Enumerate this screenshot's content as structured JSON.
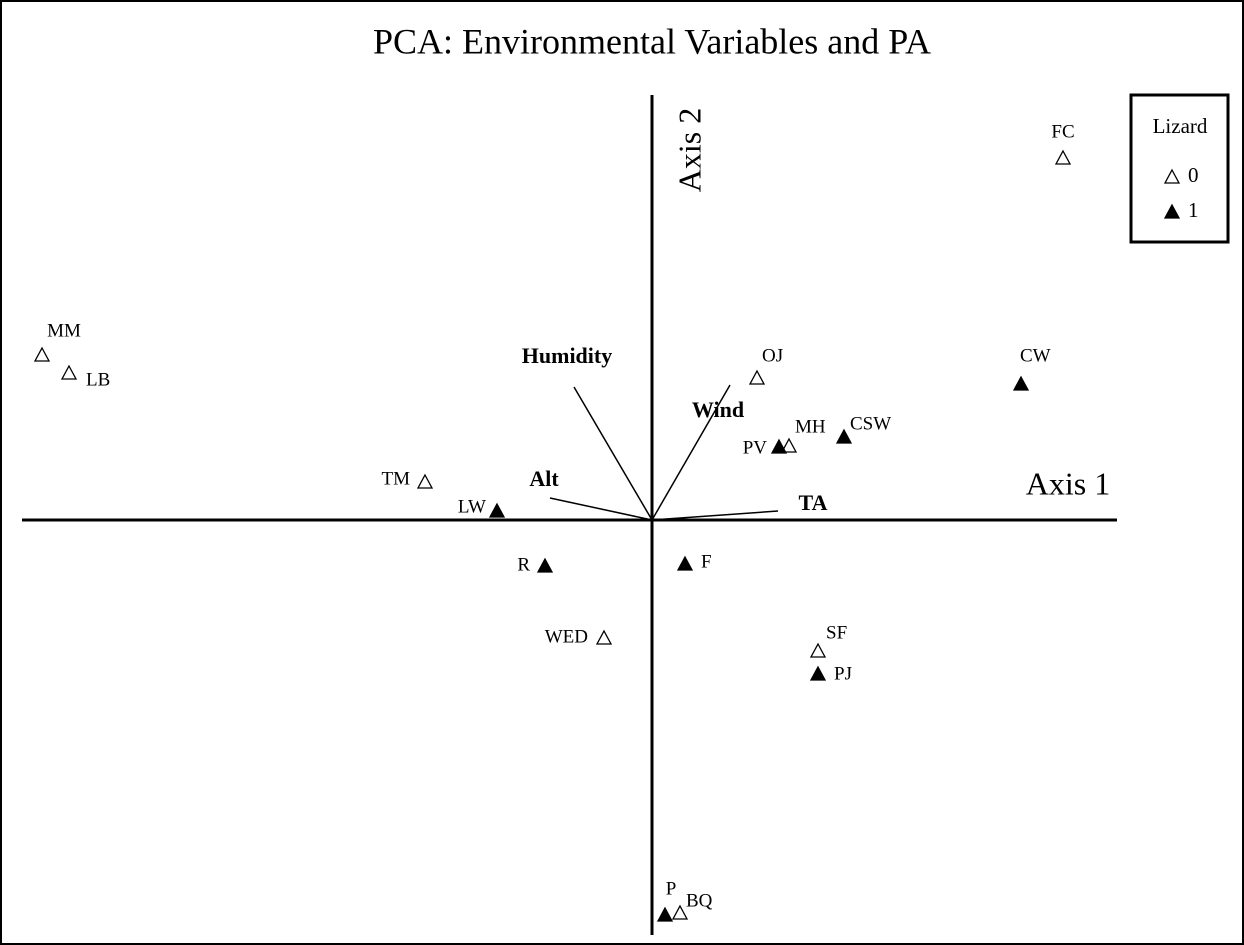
{
  "chart_data": {
    "type": "biplot",
    "title": "PCA: Environmental Variables and PA",
    "x_label": "Axis 1",
    "y_label": "Axis 2",
    "xlim": [
      -6.52,
      5.92
    ],
    "ylim": [
      -4.25,
      5.2
    ],
    "legend_title": "Lizard",
    "legend_position": "upper right",
    "series": [
      {
        "name": "0",
        "marker": "open",
        "color": "#000000",
        "labels": [
          "MM",
          "LB",
          "TM",
          "WED",
          "OJ",
          "MH",
          "FC",
          "SF",
          "BQ"
        ],
        "x": [
          -6.1,
          -5.83,
          -2.27,
          -0.48,
          1.05,
          1.37,
          4.11,
          1.66,
          0.28
        ],
        "y": [
          1.65,
          1.47,
          0.38,
          -1.18,
          1.42,
          0.74,
          3.62,
          -1.31,
          -3.93
        ]
      },
      {
        "name": "1",
        "marker": "filled",
        "color": "#000000",
        "labels": [
          "LW",
          "R",
          "F",
          "PV",
          "CSW",
          "CW",
          "PJ",
          "P"
        ],
        "x": [
          -1.55,
          -1.07,
          0.33,
          1.27,
          1.92,
          3.69,
          1.66,
          0.13
        ],
        "y": [
          0.09,
          -0.46,
          -0.44,
          0.73,
          0.83,
          1.36,
          -1.54,
          -3.95
        ]
      }
    ],
    "vectors": [
      {
        "label": "Humidity",
        "x": -0.78,
        "y": 1.33
      },
      {
        "label": "Wind",
        "x": 0.78,
        "y": 1.35
      },
      {
        "label": "Alt",
        "x": -1.02,
        "y": 0.22
      },
      {
        "label": "TA",
        "x": 1.26,
        "y": 0.09
      }
    ]
  }
}
